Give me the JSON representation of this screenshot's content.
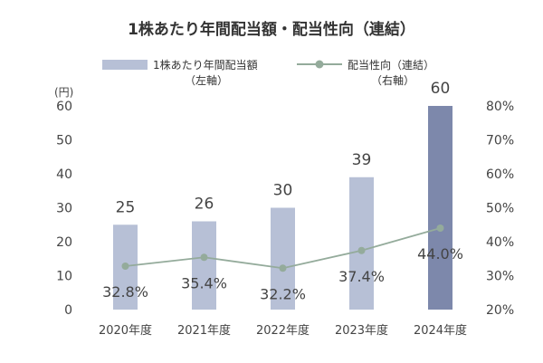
{
  "chart_data": {
    "type": "bar",
    "title": "1株あたり年間配当額・配当性向（連結）",
    "categories": [
      "2020年度",
      "2021年度",
      "2022年度",
      "2023年度",
      "2024年度"
    ],
    "left_axis": {
      "unit": "(円)",
      "ylim": [
        0,
        60
      ],
      "ticks": [
        "0",
        "10",
        "20",
        "30",
        "40",
        "50",
        "60"
      ]
    },
    "right_axis": {
      "ylim": [
        20,
        80
      ],
      "ticks": [
        "20%",
        "30%",
        "40%",
        "50%",
        "60%",
        "70%",
        "80%"
      ]
    },
    "series": [
      {
        "name": "1株あたり年間配当額",
        "axis_note": "（左軸）",
        "type": "bar",
        "values": [
          25,
          26,
          30,
          39,
          60
        ],
        "labels": [
          "25",
          "26",
          "30",
          "39",
          "60"
        ],
        "color": "#b7c0d6",
        "highlight_color": "#7d88ab"
      },
      {
        "name": "配当性向（連結）",
        "axis_note": "（右軸）",
        "type": "line",
        "values": [
          32.8,
          35.4,
          32.2,
          37.4,
          44.0
        ],
        "labels": [
          "32.8%",
          "35.4%",
          "32.2%",
          "37.4%",
          "44.0%"
        ],
        "color": "#94ab9b"
      }
    ],
    "grid": false,
    "legend": "top"
  }
}
